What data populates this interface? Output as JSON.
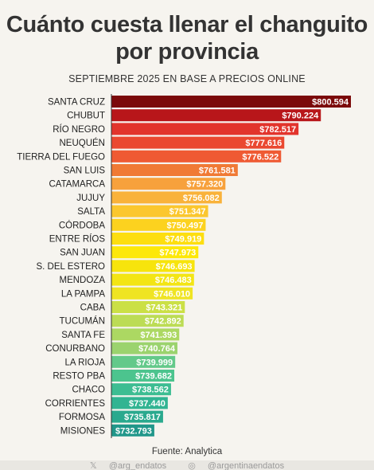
{
  "header": {
    "title_line1": "Cuánto cuesta llenar el changuito",
    "title_line2": "por provincia",
    "subtitle": "SEPTIEMBRE 2025 EN BASE A PRECIOS ONLINE"
  },
  "chart_data": {
    "type": "bar",
    "orientation": "horizontal",
    "categories": [
      "SANTA CRUZ",
      "CHUBUT",
      "RÍO NEGRO",
      "NEUQUÉN",
      "TIERRA DEL FUEGO",
      "SAN LUIS",
      "CATAMARCA",
      "JUJUY",
      "SALTA",
      "CÓRDOBA",
      "ENTRE RÍOS",
      "SAN JUAN",
      "S. DEL ESTERO",
      "MENDOZA",
      "LA PAMPA",
      "CABA",
      "TUCUMÁN",
      "SANTA FE",
      "CONURBANO",
      "LA RIOJA",
      "RESTO PBA",
      "CHACO",
      "CORRIENTES",
      "FORMOSA",
      "MISIONES"
    ],
    "values": [
      800594,
      790224,
      782517,
      777616,
      776522,
      761581,
      757320,
      756082,
      751347,
      750497,
      749919,
      747973,
      746693,
      746483,
      746010,
      743321,
      742892,
      741393,
      740764,
      739999,
      739682,
      738562,
      737440,
      735817,
      732793
    ],
    "value_labels": [
      "$800.594",
      "$790.224",
      "$782.517",
      "$777.616",
      "$776.522",
      "$761.581",
      "$757.320",
      "$756.082",
      "$751.347",
      "$750.497",
      "$749.919",
      "$747.973",
      "$746.693",
      "$746.483",
      "$746.010",
      "$743.321",
      "$742.892",
      "$741.393",
      "$740.764",
      "$739.999",
      "$739.682",
      "$738.562",
      "$737.440",
      "$735.817",
      "$732.793"
    ],
    "colors": [
      "#7b0a0a",
      "#b8161a",
      "#e2342c",
      "#ea4830",
      "#ef5a33",
      "#f07a35",
      "#f7a13c",
      "#f9b23a",
      "#fbc72e",
      "#fcd21f",
      "#fdde10",
      "#fde809",
      "#f7e40c",
      "#f3e514",
      "#efe423",
      "#cbe046",
      "#bcdc55",
      "#acd862",
      "#9bd36e",
      "#63c98a",
      "#4cc48e",
      "#3dbd92",
      "#31b492",
      "#2aa98e",
      "#21978a"
    ],
    "xlim": [
      0,
      800594
    ]
  },
  "footer": {
    "source": "Fuente: Analytica",
    "twitter_handle": "@arg_endatos",
    "instagram_handle": "@argentinaendatos"
  }
}
